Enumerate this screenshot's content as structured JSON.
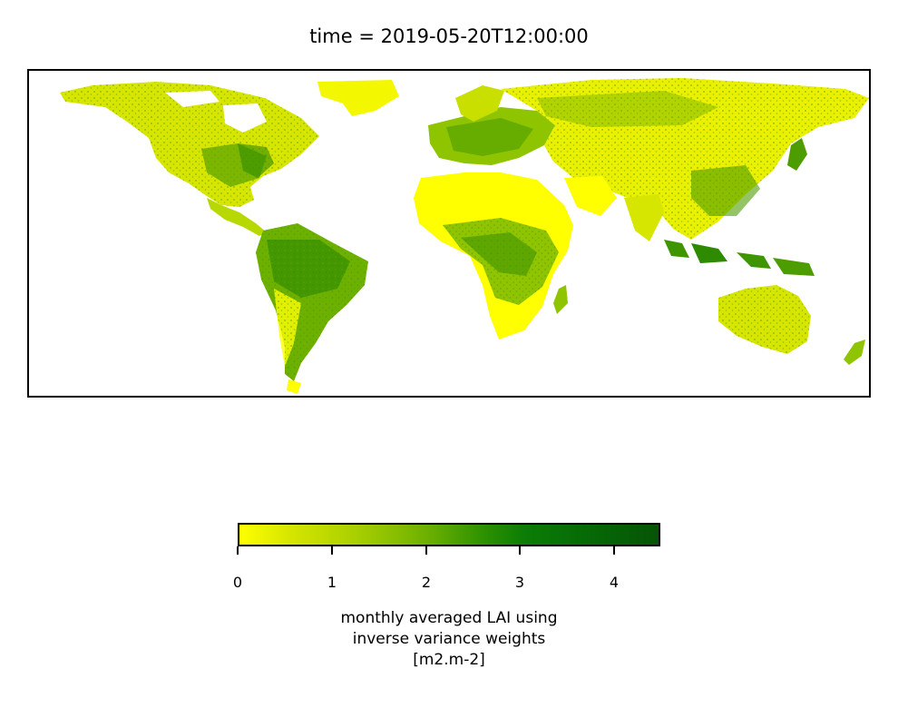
{
  "title": "time = 2019-05-20T12:00:00",
  "colorbar": {
    "ticks": [
      "0",
      "1",
      "2",
      "3",
      "4"
    ],
    "tick_values": [
      0,
      1,
      2,
      3,
      4
    ],
    "vmin": 0,
    "vmax": 4.5,
    "colormap": [
      "#ffff00",
      "#a8cf00",
      "#2e9200",
      "#0b7d05",
      "#065406"
    ],
    "label_lines": [
      "monthly averaged LAI using",
      "inverse variance weights",
      "[m2.m-2]"
    ]
  },
  "map": {
    "projection": "PlateCarree",
    "background": "#ffffff",
    "land_low_color": "#ffff00",
    "land_high_color": "#065406"
  }
}
